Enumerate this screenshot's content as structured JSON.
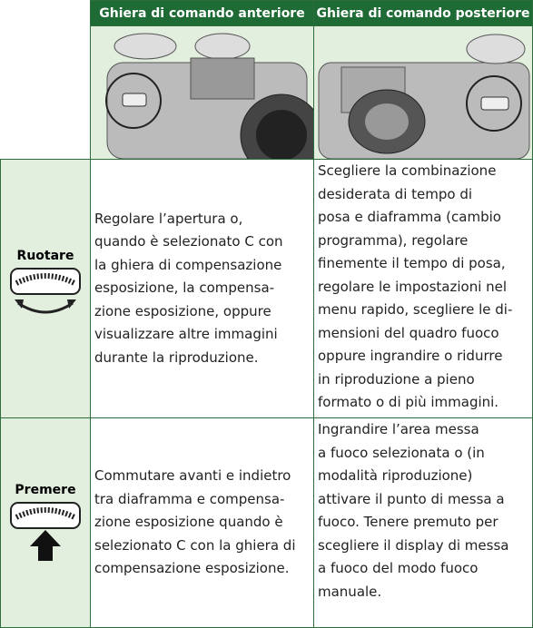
{
  "table": {
    "header": [
      "Ghiera di comando anteriore",
      "Ghiera di comando posteriore"
    ],
    "rows": [
      {
        "label": "Ruotare",
        "cells": [
          [
            "Regolare l’apertura o,",
            "quando è selezionato C con",
            "la ghiera di compensazione",
            "esposizione, la compensa-",
            "zione esposizione, oppure",
            "visualizzare altre immagini",
            "durante la riproduzione."
          ],
          [
            "Scegliere la combinazione",
            "desiderata di tempo di",
            "posa e diaframma (cambio",
            "programma), regolare",
            "finemente il tempo di posa,",
            "regolare le impostazioni nel",
            "menu rapido, scegliere le di-",
            "mensioni del quadro fuoco",
            "oppure ingrandire o ridurre",
            "in riproduzione a pieno",
            "formato o di più immagini."
          ]
        ]
      },
      {
        "label": "Premere",
        "cells": [
          [
            "Commutare avanti e indietro",
            "tra diaframma e compensa-",
            "zione esposizione quando è",
            "selezionato C con la ghiera di",
            "compensazione esposizione."
          ],
          [
            "Ingrandire l’area messa",
            "a fuoco selezionata o (in",
            "modalità riproduzione)",
            "attivare il punto di messa a",
            "fuoco. Tenere premuto per",
            "scegliere il display di messa",
            "a fuoco del modo fuoco",
            "manuale."
          ]
        ]
      }
    ]
  }
}
